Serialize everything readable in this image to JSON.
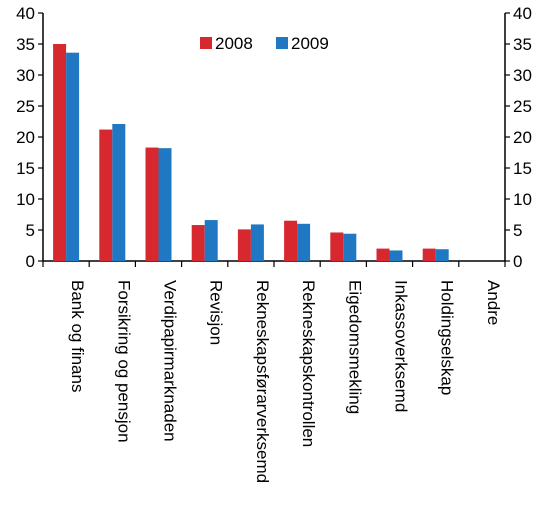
{
  "chart_data": {
    "type": "bar",
    "categories": [
      "Bank og finans",
      "Forsikring og pensjon",
      "Verdipapirmarknaden",
      "Revisjon",
      "Rekneskapsførarverksemd",
      "Rekneskapskontrollen",
      "Eigedomsmekling",
      "Inkassoverksemd",
      "Holdingselskap",
      "Andre"
    ],
    "series": [
      {
        "name": "2008",
        "color": "#d7282f",
        "values": [
          35.0,
          21.2,
          18.3,
          5.8,
          5.1,
          6.5,
          4.6,
          2.0,
          2.0,
          0
        ]
      },
      {
        "name": "2009",
        "color": "#1f78c1",
        "values": [
          33.6,
          22.1,
          18.2,
          6.6,
          5.9,
          6.0,
          4.4,
          1.7,
          1.9,
          0
        ]
      }
    ],
    "ylim": [
      0,
      40
    ],
    "yticks": [
      "0",
      "5",
      "10",
      "15",
      "20",
      "25",
      "30",
      "35",
      "40"
    ],
    "right_axis": true,
    "legend_position": "top-center",
    "grid": false
  }
}
